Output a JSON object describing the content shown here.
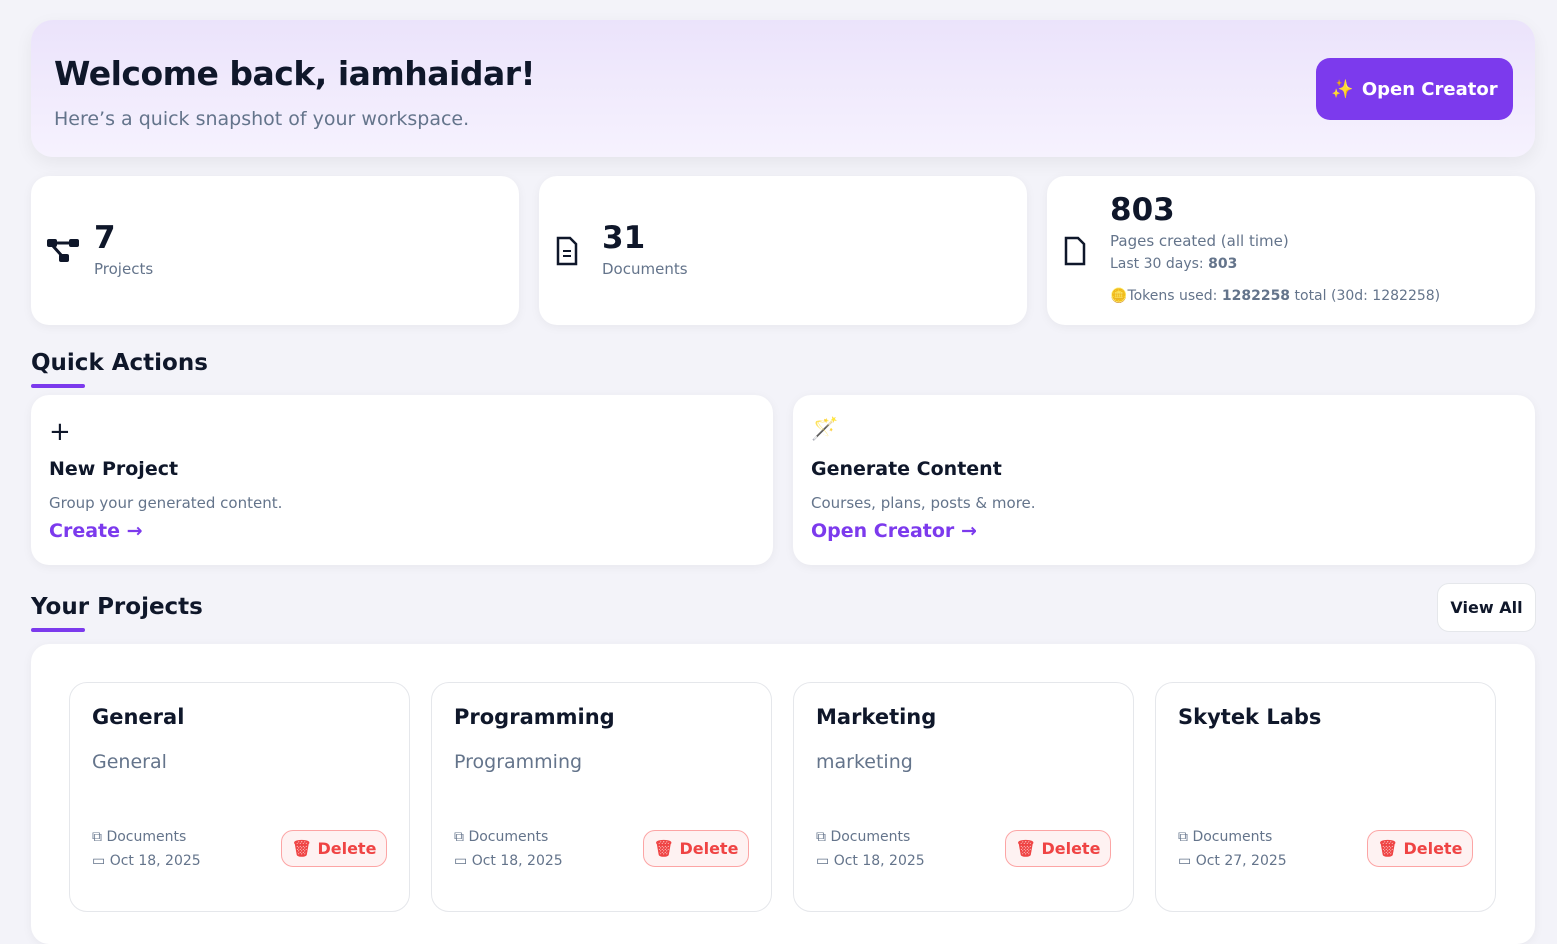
{
  "hero": {
    "title": "Welcome back, iamhaidar!",
    "subtitle": "Here’s a quick snapshot of your workspace.",
    "button": "Open Creator"
  },
  "stats": [
    {
      "value": "7",
      "label": "Projects",
      "icon": "project-diagram-icon"
    },
    {
      "value": "31",
      "label": "Documents",
      "icon": "document-icon"
    },
    {
      "value": "803",
      "label": "Pages created (all time)",
      "icon": "page-icon",
      "last30_label": "Last 30 days:",
      "last30_value": "803",
      "tokens_label": "Tokens used:",
      "tokens_value": "1282258",
      "tokens_suffix": "total (30d: 1282258)"
    }
  ],
  "quick_actions": {
    "title": "Quick Actions",
    "items": [
      {
        "icon": "plus-icon",
        "title": "New Project",
        "desc": "Group your generated content.",
        "link": "Create"
      },
      {
        "icon": "magic-wand-icon",
        "title": "Generate Content",
        "desc": "Courses, plans, posts & more.",
        "link": "Open Creator"
      }
    ]
  },
  "projects": {
    "title": "Your Projects",
    "view_all": "View All",
    "items": [
      {
        "name": "General",
        "desc": "General",
        "docs": "Documents",
        "date": "Oct 18, 2025",
        "delete": "Delete"
      },
      {
        "name": "Programming",
        "desc": "Programming",
        "docs": "Documents",
        "date": "Oct 18, 2025",
        "delete": "Delete"
      },
      {
        "name": "Marketing",
        "desc": "marketing",
        "docs": "Documents",
        "date": "Oct 18, 2025",
        "delete": "Delete"
      },
      {
        "name": "Skytek Labs",
        "desc": "",
        "docs": "Documents",
        "date": "Oct 27, 2025",
        "delete": "Delete"
      }
    ]
  },
  "colors": {
    "accent": "#7c3aed",
    "danger": "#ef4444"
  }
}
